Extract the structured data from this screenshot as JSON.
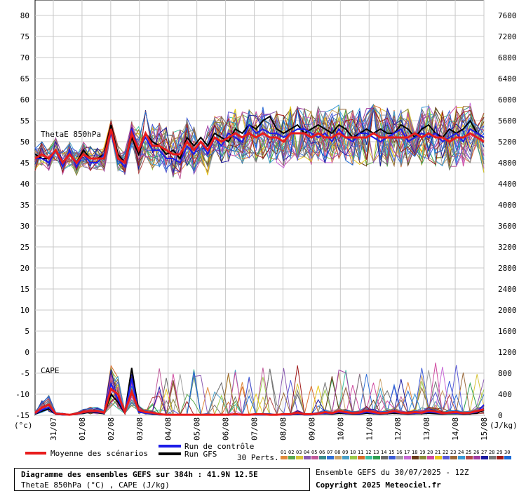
{
  "chart_data": {
    "type": "line",
    "title": "Diagramme des ensembles GEFS sur 384h : 41.9N 12.5E",
    "subtitle": "ThetaE 850hPa (°C) , CAPE (J/kg)",
    "left_unit": "(°c)",
    "right_unit": "(J/kg)",
    "left_axis": {
      "ylim": [
        -15,
        80
      ],
      "ticks": [
        "80",
        "75",
        "70",
        "65",
        "60",
        "55",
        "50",
        "45",
        "40",
        "35",
        "30",
        "25",
        "20",
        "15",
        "10",
        "5",
        "0",
        "-5",
        "-10",
        "-15"
      ]
    },
    "right_axis": {
      "ylim": [
        0,
        7600
      ],
      "ticks": [
        "7600",
        "7200",
        "6800",
        "6400",
        "6000",
        "5600",
        "5200",
        "4800",
        "4400",
        "4000",
        "3600",
        "3200",
        "2800",
        "2400",
        "2000",
        "1600",
        "1200",
        "800",
        "400",
        "0"
      ]
    },
    "x_labels": [
      "31/07",
      "01/08",
      "02/08",
      "03/08",
      "04/08",
      "05/08",
      "06/08",
      "07/08",
      "08/08",
      "09/08",
      "10/08",
      "11/08",
      "12/08",
      "13/08",
      "14/08",
      "15/08"
    ],
    "grid": true,
    "thetae_label": "ThetaE 850hPa",
    "cape_label": "CAPE",
    "thetae_mean": [
      46,
      47,
      46,
      48,
      45,
      47,
      45,
      47,
      46,
      46,
      46,
      53,
      46,
      45,
      52,
      48,
      52,
      49,
      49,
      48,
      47,
      47,
      50,
      48,
      50,
      48,
      51,
      50,
      51,
      52,
      51,
      52,
      51,
      52,
      51,
      51,
      50,
      52,
      52,
      52,
      51,
      52,
      51,
      51,
      52,
      51,
      51,
      51,
      51,
      52,
      51,
      51,
      51,
      51,
      51,
      52,
      51,
      52,
      51,
      51,
      50,
      51,
      51,
      52,
      51,
      50
    ],
    "thetae_control": [
      46,
      46,
      45,
      48,
      44,
      48,
      44,
      47,
      45,
      45,
      47,
      52,
      46,
      44,
      53,
      48,
      51,
      48,
      48,
      46,
      46,
      45,
      49,
      47,
      50,
      47,
      51,
      49,
      52,
      51,
      50,
      54,
      52,
      53,
      52,
      52,
      51,
      52,
      53,
      53,
      52,
      51,
      52,
      50,
      53,
      51,
      50,
      52,
      52,
      51,
      50,
      51,
      52,
      53,
      50,
      51,
      52,
      51,
      52,
      50,
      51,
      52,
      50,
      53,
      52,
      51
    ],
    "thetae_gfs": [
      47,
      46,
      46,
      48,
      45,
      47,
      45,
      48,
      46,
      46,
      47,
      54,
      47,
      45,
      51,
      47,
      52,
      50,
      49,
      47,
      48,
      46,
      51,
      49,
      51,
      49,
      52,
      51,
      50,
      53,
      52,
      54,
      53,
      55,
      56,
      53,
      52,
      53,
      54,
      52,
      53,
      54,
      53,
      52,
      54,
      53,
      51,
      52,
      53,
      52,
      53,
      52,
      52,
      54,
      53,
      51,
      53,
      54,
      52,
      51,
      53,
      52,
      53,
      55,
      52,
      51
    ],
    "cape_mean": [
      40,
      150,
      200,
      30,
      20,
      10,
      30,
      60,
      80,
      80,
      50,
      500,
      400,
      60,
      450,
      100,
      60,
      50,
      20,
      10,
      10,
      10,
      10,
      10,
      10,
      10,
      10,
      10,
      10,
      20,
      10,
      10,
      20,
      20,
      10,
      10,
      20,
      20,
      50,
      20,
      20,
      30,
      60,
      40,
      80,
      60,
      40,
      50,
      90,
      60,
      40,
      50,
      80,
      50,
      40,
      60,
      50,
      90,
      70,
      40,
      50,
      60,
      40,
      50,
      80,
      110
    ],
    "cape_control": [
      30,
      100,
      150,
      20,
      10,
      10,
      20,
      50,
      70,
      60,
      40,
      600,
      300,
      50,
      700,
      60,
      40,
      30,
      10,
      10,
      10,
      10,
      10,
      10,
      10,
      10,
      10,
      10,
      10,
      10,
      10,
      10,
      10,
      10,
      10,
      10,
      10,
      10,
      30,
      10,
      10,
      20,
      40,
      30,
      60,
      40,
      30,
      30,
      60,
      40,
      30,
      40,
      60,
      40,
      30,
      40,
      40,
      60,
      50,
      30,
      40,
      40,
      30,
      40,
      60,
      200
    ],
    "cape_gfs": [
      20,
      80,
      120,
      20,
      10,
      10,
      20,
      40,
      60,
      50,
      30,
      400,
      250,
      40,
      900,
      80,
      40,
      20,
      10,
      10,
      10,
      10,
      10,
      10,
      10,
      10,
      10,
      10,
      10,
      10,
      10,
      10,
      10,
      10,
      10,
      10,
      10,
      10,
      20,
      10,
      10,
      20,
      30,
      20,
      40,
      30,
      20,
      20,
      40,
      30,
      20,
      30,
      40,
      30,
      20,
      30,
      30,
      40,
      30,
      20,
      30,
      30,
      20,
      30,
      40,
      100
    ],
    "perturbation_colors": [
      "#e08a3c",
      "#5aa84e",
      "#d6c43a",
      "#8a5ab0",
      "#c05a9a",
      "#3a8a8a",
      "#2e6dd6",
      "#c9a26b",
      "#4aa0c8",
      "#9ac94a",
      "#d86a2a",
      "#3cc0a0",
      "#2ea052",
      "#6a6a6a",
      "#3a5ad6",
      "#a0a0a0",
      "#c86ad6",
      "#6a3a1a",
      "#8a8a3a",
      "#d04aa0",
      "#e8c81a",
      "#5a5ad6",
      "#9a6a3a",
      "#3a9ad6",
      "#b04a4a",
      "#a03aa0",
      "#1a1aa0",
      "#7a7a7a",
      "#a01a1a",
      "#1a6ad6"
    ],
    "legend": {
      "mean": {
        "label": "Moyenne des scénarios",
        "color": "#e81c1c"
      },
      "control": {
        "label": "Run de contrôle",
        "color": "#1c1ce8"
      },
      "gfs": {
        "label": "Run GFS",
        "color": "#000000"
      },
      "perts_label": "30 Perts.",
      "pert_numbers": [
        "01",
        "02",
        "03",
        "04",
        "05",
        "06",
        "07",
        "08",
        "09",
        "10",
        "11",
        "12",
        "13",
        "14",
        "15",
        "16",
        "17",
        "18",
        "19",
        "20",
        "21",
        "22",
        "23",
        "24",
        "25",
        "26",
        "27",
        "28",
        "29",
        "30"
      ]
    },
    "run_info": "Ensemble GEFS du 30/07/2025 - 12Z",
    "copyright": "Copyright 2025 Meteociel.fr"
  }
}
